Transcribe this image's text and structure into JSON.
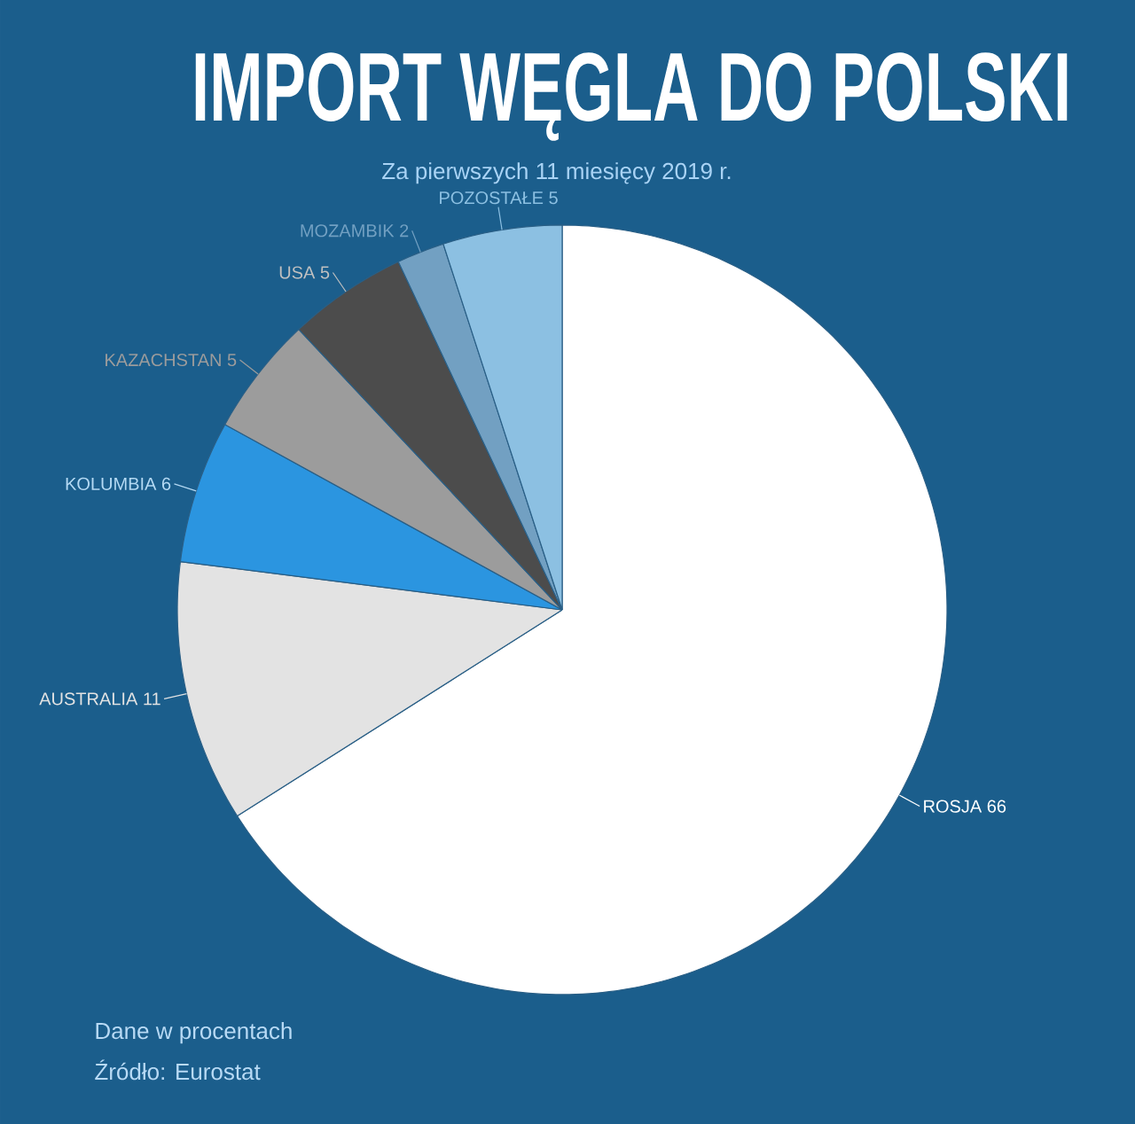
{
  "chart_data": {
    "type": "pie",
    "title": "IMPORT WĘGLA DO POLSKI",
    "subtitle": "Za pierwszych 11 miesięcy 2019 r.",
    "categories": [
      "ROSJA",
      "AUSTRALIA",
      "KOLUMBIA",
      "KAZACHSTAN",
      "USA",
      "MOZAMBIK",
      "POZOSTAŁE"
    ],
    "values": [
      66,
      11,
      6,
      5,
      5,
      2,
      5
    ],
    "colors": [
      "#ffffff",
      "#e3e3e3",
      "#2b95e0",
      "#9c9c9c",
      "#4c4c4c",
      "#72a0c2",
      "#8cc0e2"
    ],
    "data_labels": true,
    "annotations": [
      "Dane w procentach",
      "Źródło: Eurostat"
    ]
  }
}
